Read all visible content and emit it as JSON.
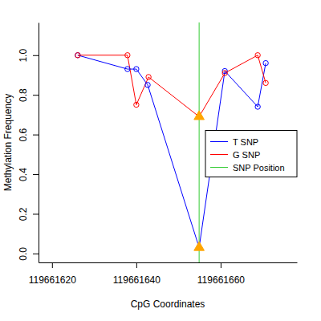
{
  "chart_data": {
    "type": "line",
    "x_label": "CpG Coordinates",
    "y_label": "Methylation Frequency",
    "xlim": [
      119661616.8,
      119661678.1
    ],
    "xticks": [
      119661620,
      119661640,
      119661660
    ],
    "ylim": [
      -0.045,
      1.165
    ],
    "yticks": [
      {
        "value": 0,
        "label": "0.0"
      },
      {
        "value": 0.2,
        "label": "0.2"
      },
      {
        "value": 0.4,
        "label": "0.4"
      },
      {
        "value": 0.6,
        "label": "0.6"
      },
      {
        "value": 0.8,
        "label": "0.8"
      },
      {
        "value": 1.0,
        "label": "1.0"
      }
    ],
    "legend": "right",
    "marker": "circle",
    "series": [
      {
        "name": "T SNP",
        "color": "#0000ff",
        "x": [
          119661626.1,
          119661637.9,
          119661640,
          119661642.7,
          119661654.9,
          119661661,
          119661668.8,
          119661670.7
        ],
        "values": [
          1.0,
          0.93,
          0.93,
          0.85,
          0.03,
          0.92,
          0.74,
          0.96
        ]
      },
      {
        "name": "G SNP",
        "color": "#ff0000",
        "x": [
          119661626.1,
          119661637.9,
          119661640,
          119661642.9,
          119661654.9,
          119661661,
          119661668.8,
          119661670.7
        ],
        "values": [
          1.0,
          1.0,
          0.75,
          0.89,
          0.69,
          0.91,
          1.0,
          0.86
        ]
      }
    ],
    "vline": {
      "name": "SNP Position",
      "color": "#33cc33",
      "x": 119661654.9
    }
  }
}
